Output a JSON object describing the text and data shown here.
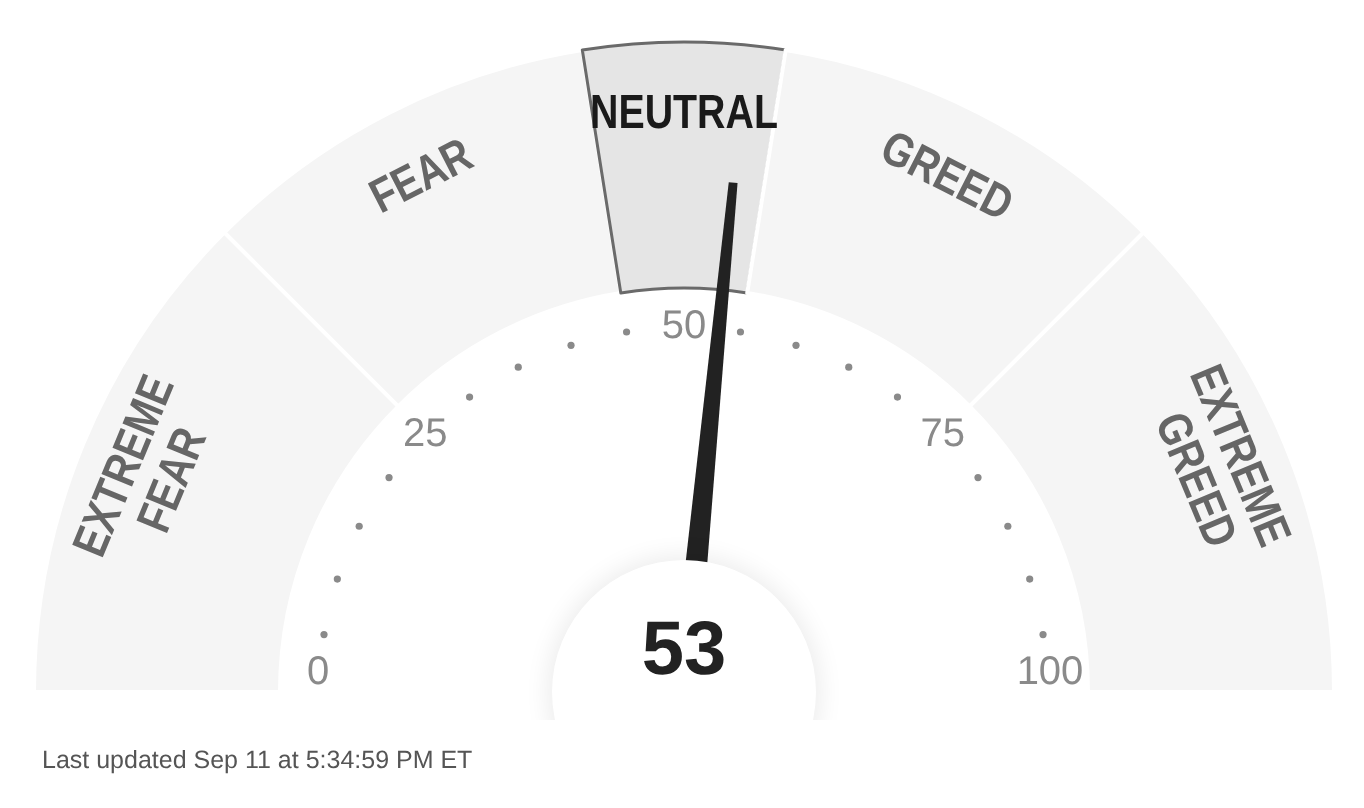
{
  "chart_data": {
    "type": "donut",
    "categories": [
      "EXTREME FEAR",
      "FEAR",
      "NEUTRAL",
      "GREED",
      "EXTREME GREED"
    ],
    "values": [
      25,
      20,
      10,
      20,
      25
    ],
    "colors": [
      "#f5f5f5",
      "#f5f5f5",
      "#e5e5e5",
      "#f5f5f5",
      "#f5f5f5"
    ],
    "needle": "NEUTRAL",
    "annotations": [
      "0",
      "25",
      "50",
      "75",
      "100",
      "53",
      "Last updated Sep 11 at 5:34:59 PM ET"
    ]
  }
}
